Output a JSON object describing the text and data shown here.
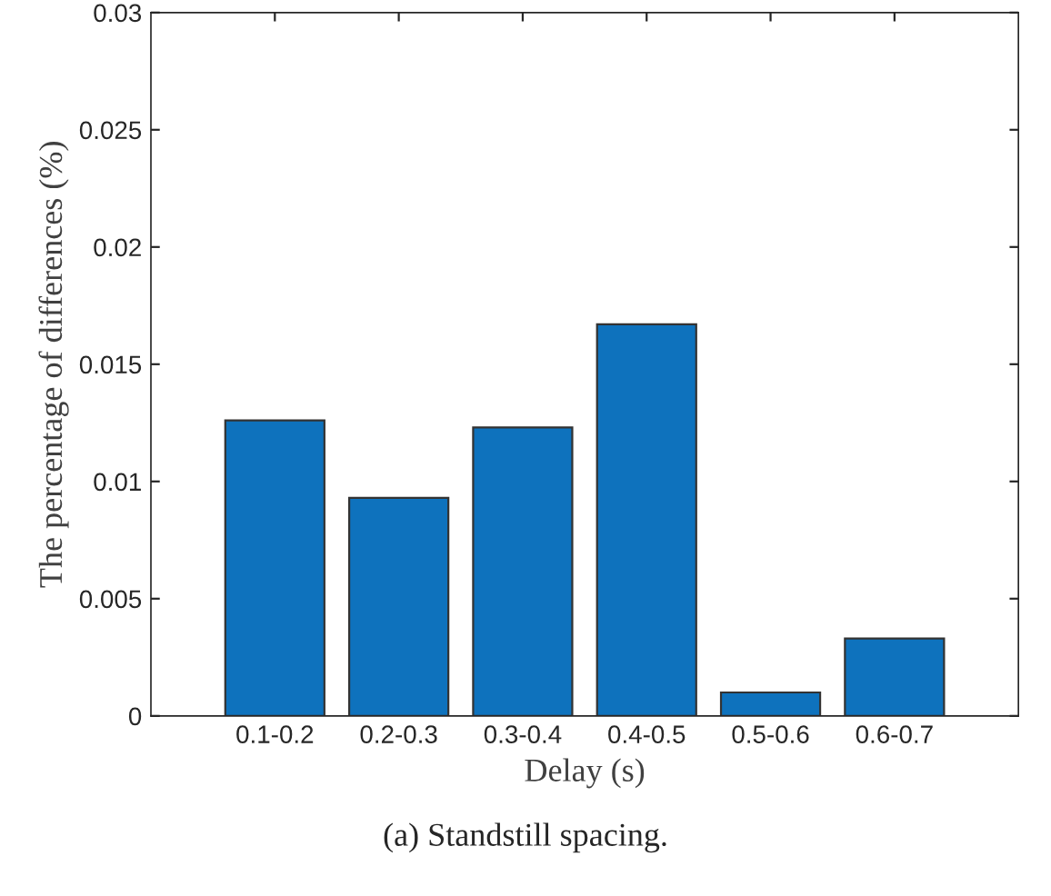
{
  "chart_data": {
    "type": "bar",
    "xlabel": "Delay (s)",
    "ylabel": "The percentage of differences (%)",
    "categories": [
      "0.1-0.2",
      "0.2-0.3",
      "0.3-0.4",
      "0.4-0.5",
      "0.5-0.6",
      "0.6-0.7"
    ],
    "values": [
      0.0126,
      0.0093,
      0.0123,
      0.0167,
      0.001,
      0.0033
    ],
    "color": "#0e72bd",
    "ylim": [
      0,
      0.03
    ],
    "yticks": [
      {
        "value": 0,
        "label": "0"
      },
      0.005,
      0.01,
      0.015,
      0.02,
      0.025,
      0.03
    ],
    "grid": false,
    "legend": false,
    "annotations": [
      "(a) Standstill spacing."
    ]
  }
}
